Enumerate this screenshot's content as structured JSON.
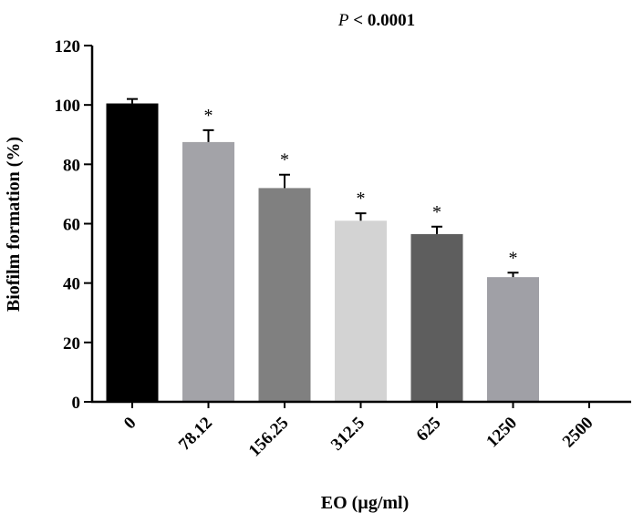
{
  "chart_data": {
    "type": "bar",
    "annotation": {
      "p_symbol": "P",
      "p_rest": " < 0.0001"
    },
    "xlabel": "EO (µg/ml)",
    "ylabel": "Biofilm formation (%)",
    "ylim": [
      0,
      120
    ],
    "yticks": [
      0,
      20,
      40,
      60,
      80,
      100,
      120
    ],
    "categories": [
      "0",
      "78.12",
      "156.25",
      "312.5",
      "625",
      "1250",
      "2500"
    ],
    "values": [
      100.5,
      87.5,
      72,
      61,
      56.5,
      42,
      0
    ],
    "errors": [
      1.5,
      4,
      4.5,
      2.5,
      2.5,
      1.5,
      0
    ],
    "significance": [
      "",
      "*",
      "*",
      "*",
      "*",
      "*",
      ""
    ],
    "colors": [
      "#000000",
      "#a3a3a8",
      "#808080",
      "#d3d3d3",
      "#5e5e5e",
      "#a0a0a6",
      "#ffffff"
    ]
  }
}
